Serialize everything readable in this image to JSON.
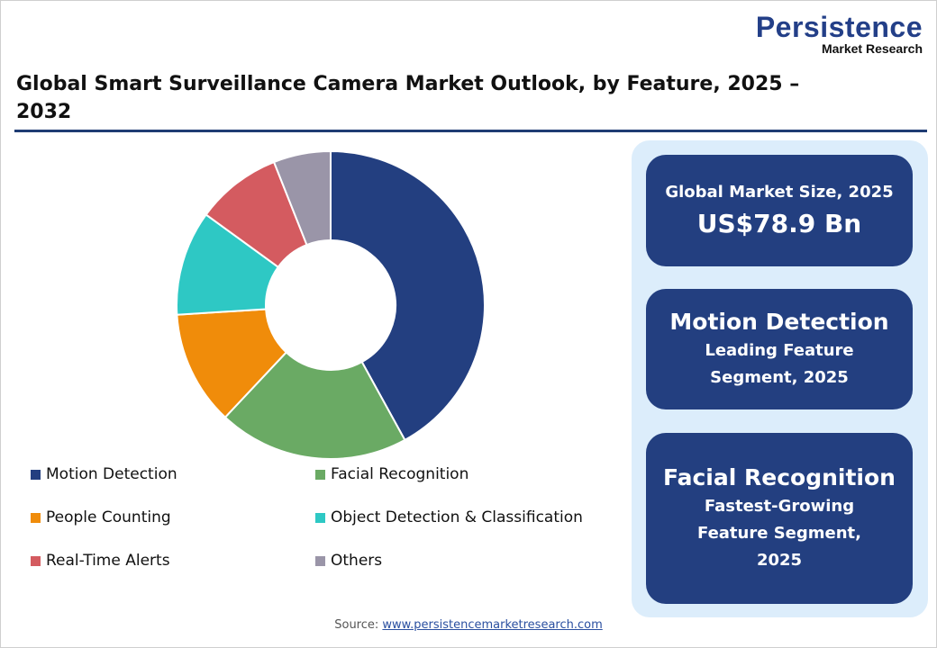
{
  "logo": {
    "line1": "Persistence",
    "line2": "Market Research"
  },
  "title": "Global Smart Surveillance Camera Market Outlook, by Feature, 2025 – 2032",
  "chart_data": {
    "type": "pie",
    "style": "donut",
    "title": "Global Smart Surveillance Camera Market Outlook, by Feature, 2025 – 2032",
    "unit": "%",
    "legend_placement": "bottom",
    "slices": [
      {
        "name": "Motion Detection",
        "value": 42,
        "color": "#233f80"
      },
      {
        "name": "Facial Recognition",
        "value": 20,
        "color": "#6aaa64"
      },
      {
        "name": "People Counting",
        "value": 12,
        "color": "#f08c0a"
      },
      {
        "name": "Object Detection & Classification",
        "value": 11,
        "color": "#2ec8c4"
      },
      {
        "name": "Real-Time Alerts",
        "value": 9,
        "color": "#d45b60"
      },
      {
        "name": "Others",
        "value": 6,
        "color": "#9a95a8"
      }
    ]
  },
  "cards": [
    {
      "label": "Global Market Size, 2025",
      "value": "US$78.9 Bn"
    },
    {
      "head": "Motion Detection",
      "sub": "Leading Feature Segment, 2025"
    },
    {
      "head": "Facial Recognition",
      "sub": "Fastest-Growing Feature Segment, 2025"
    }
  ],
  "source": {
    "label": "Source:",
    "link": "www.persistencemarketresearch.com"
  }
}
